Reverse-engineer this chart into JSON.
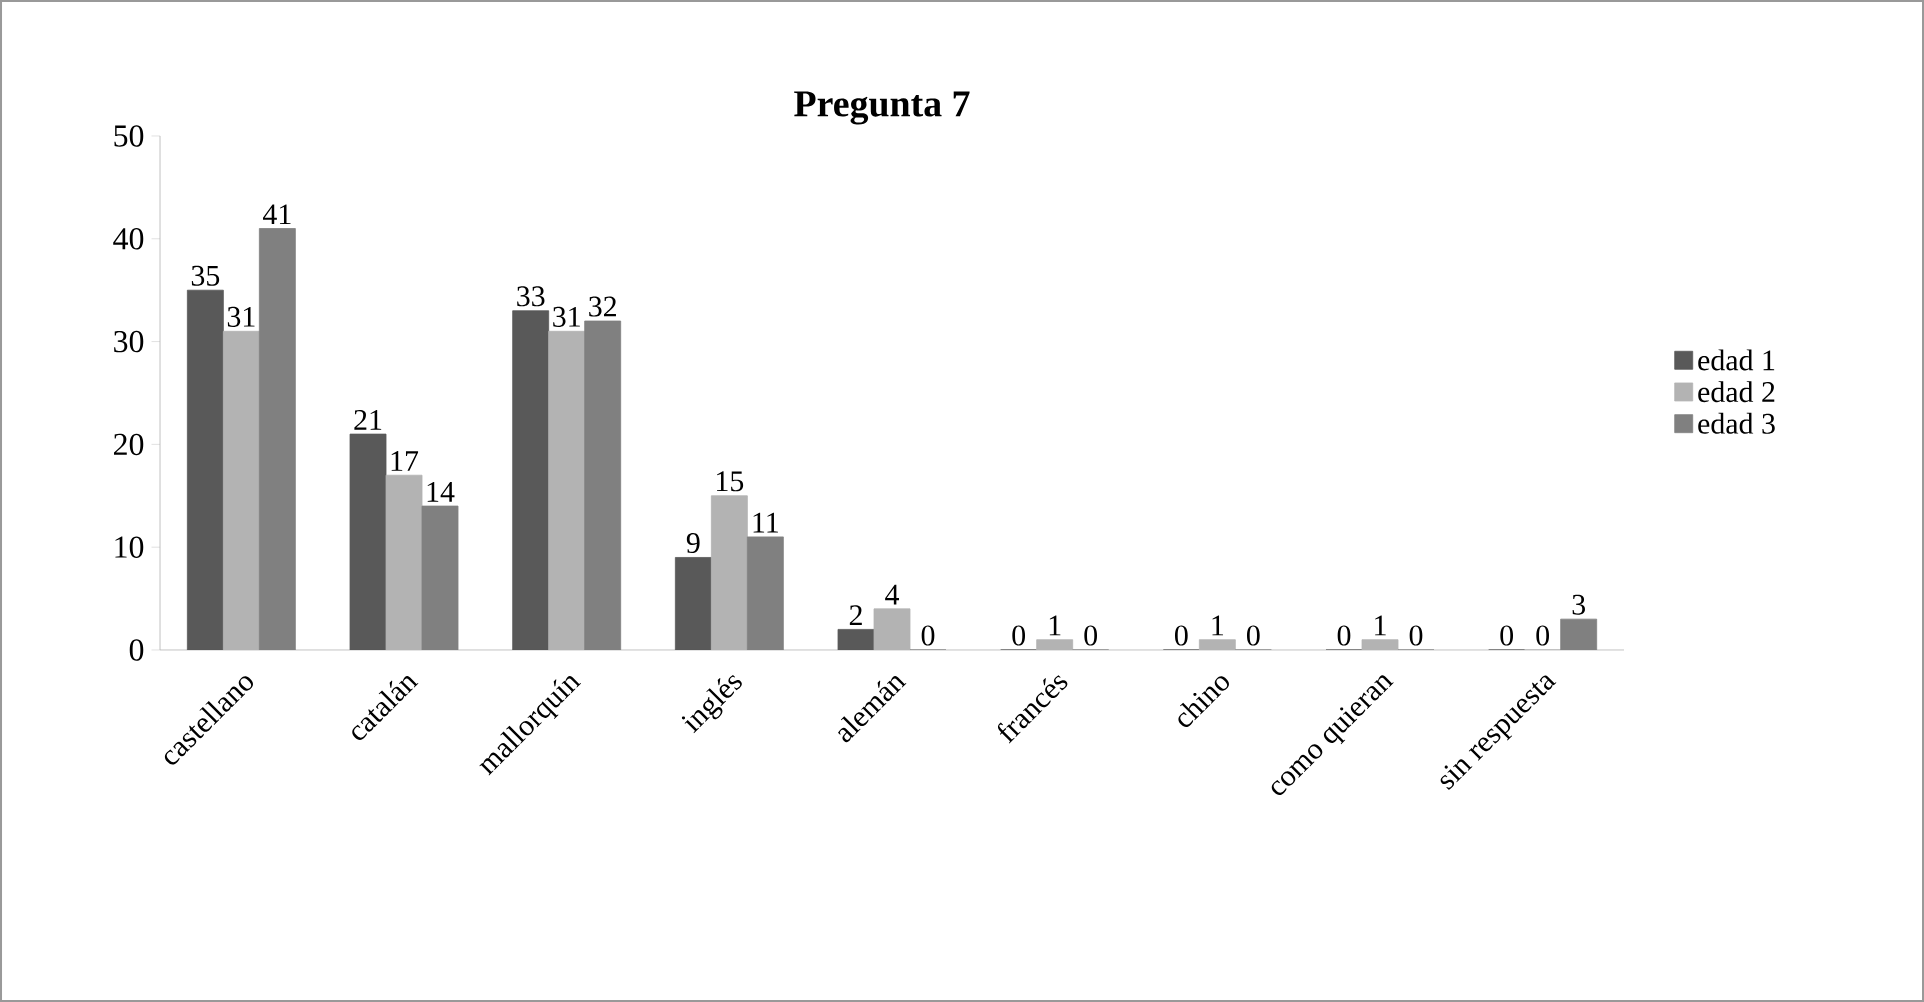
{
  "chart_data": {
    "type": "bar",
    "title": "Pregunta 7",
    "categories": [
      "castellano",
      "catalán",
      "mallorquín",
      "inglés",
      "alemán",
      "francés",
      "chino",
      "como quieran",
      "sin respuesta"
    ],
    "series": [
      {
        "name": "edad 1",
        "color": "#595959",
        "values": [
          35,
          21,
          33,
          9,
          2,
          0,
          0,
          0,
          0
        ]
      },
      {
        "name": "edad 2",
        "color": "#b3b3b3",
        "values": [
          31,
          17,
          31,
          15,
          4,
          1,
          1,
          1,
          0
        ]
      },
      {
        "name": "edad 3",
        "color": "#808080",
        "values": [
          41,
          14,
          32,
          11,
          0,
          0,
          0,
          0,
          3
        ]
      }
    ],
    "ylim": [
      0,
      50
    ],
    "yticks": [
      0,
      10,
      20,
      30,
      40,
      50
    ],
    "data_labels": true,
    "legend": "right",
    "grid": false
  }
}
